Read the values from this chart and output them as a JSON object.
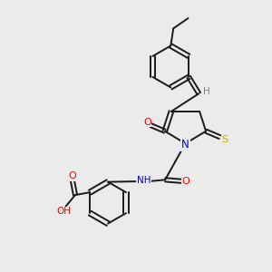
{
  "background_color": "#ebebeb",
  "bond_color": "#1a1a1a",
  "atom_colors": {
    "O": "#ff0000",
    "N": "#0000cc",
    "S": "#ccaa00",
    "H": "#808080",
    "C": "#1a1a1a"
  },
  "figsize": [
    3.0,
    3.0
  ],
  "dpi": 100
}
